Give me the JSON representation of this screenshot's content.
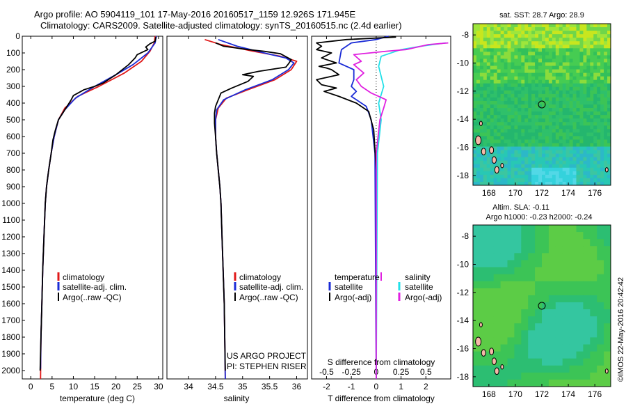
{
  "header": {
    "line1": "Argo profile: AO 5904119_101 17-May-2016 20160517_1159 12.926S 171.945E",
    "line2": "Climatology: CARS2009. Satellite-adjusted climatology: synTS_20160515.nc (2.4d earlier)"
  },
  "side_stamp": "©IMOS 22-May-2016 20:42:42",
  "colors": {
    "climatology": "#e01818",
    "satellite": "#1a2bd6",
    "argo": "#000000",
    "magenta": "#e020e0",
    "cyan": "#22e0e8"
  },
  "chart_data": [
    {
      "type": "line",
      "id": "temperature",
      "xlabel": "temperature (deg C)",
      "xlim": [
        -2,
        31
      ],
      "xticks": [
        0,
        5,
        10,
        15,
        20,
        25,
        30
      ],
      "ylim": [
        0,
        2050
      ],
      "yticks": [
        0,
        100,
        200,
        300,
        400,
        500,
        600,
        700,
        800,
        900,
        1000,
        1100,
        1200,
        1300,
        1400,
        1500,
        1600,
        1700,
        1800,
        1900,
        2000
      ],
      "legend": [
        "climatology",
        "satellite-adj. clim.",
        "Argo(..raw -QC)"
      ],
      "series": [
        {
          "name": "climatology",
          "color": "#e01818",
          "points": [
            [
              29.2,
              0
            ],
            [
              29,
              40
            ],
            [
              28,
              90
            ],
            [
              26,
              150
            ],
            [
              22,
              220
            ],
            [
              16,
              300
            ],
            [
              11,
              360
            ],
            [
              8,
              430
            ],
            [
              6.5,
              500
            ],
            [
              5.5,
              600
            ],
            [
              4.8,
              700
            ],
            [
              4.2,
              800
            ],
            [
              3.7,
              900
            ],
            [
              3.4,
              1000
            ],
            [
              3.1,
              1200
            ],
            [
              2.8,
              1400
            ],
            [
              2.6,
              1600
            ],
            [
              2.4,
              1800
            ],
            [
              2.3,
              2050
            ]
          ]
        },
        {
          "name": "satellite-adj. clim.",
          "color": "#1a2bd6",
          "points": [
            [
              29.5,
              0
            ],
            [
              29.2,
              40
            ],
            [
              27.5,
              100
            ],
            [
              24,
              170
            ],
            [
              20,
              230
            ],
            [
              15,
              300
            ],
            [
              10.5,
              370
            ],
            [
              8,
              440
            ],
            [
              6.5,
              500
            ],
            [
              5.5,
              600
            ],
            [
              4.8,
              700
            ],
            [
              4.2,
              800
            ],
            [
              3.7,
              900
            ],
            [
              3.4,
              1000
            ],
            [
              3.1,
              1200
            ],
            [
              2.8,
              1400
            ],
            [
              2.6,
              1600
            ],
            [
              2.4,
              1800
            ],
            [
              2.3,
              1990
            ]
          ]
        },
        {
          "name": "Argo(..raw -QC)",
          "color": "#000000",
          "points": [
            [
              29.4,
              5
            ],
            [
              29.2,
              30
            ],
            [
              28,
              45
            ],
            [
              27,
              65
            ],
            [
              27.5,
              80
            ],
            [
              25,
              110
            ],
            [
              24.5,
              130
            ],
            [
              23,
              170
            ],
            [
              20,
              230
            ],
            [
              17,
              280
            ],
            [
              15,
              300
            ],
            [
              12.5,
              320
            ],
            [
              10,
              355
            ],
            [
              9.5,
              380
            ],
            [
              8.5,
              420
            ],
            [
              7.5,
              460
            ],
            [
              6.5,
              500
            ],
            [
              5.8,
              560
            ],
            [
              5.2,
              620
            ],
            [
              4.8,
              700
            ],
            [
              4.2,
              800
            ],
            [
              3.7,
              900
            ],
            [
              3.4,
              1000
            ],
            [
              3.1,
              1200
            ],
            [
              2.8,
              1400
            ],
            [
              2.6,
              1600
            ],
            [
              2.4,
              1800
            ],
            [
              2.2,
              2000
            ]
          ]
        }
      ]
    },
    {
      "type": "line",
      "id": "salinity",
      "xlabel": "salinity",
      "xlim": [
        33.6,
        36.2
      ],
      "xticks": [
        34,
        34.5,
        35,
        35.5,
        36
      ],
      "ylim": [
        0,
        2050
      ],
      "legend": [
        "climatology",
        "satellite-adj. clim.",
        "Argo(..raw -QC)"
      ],
      "annotations": [
        "US ARGO PROJECT",
        "PI: STEPHEN RISER"
      ],
      "series": [
        {
          "name": "climatology",
          "color": "#e01818",
          "points": [
            [
              34.3,
              20
            ],
            [
              34.6,
              50
            ],
            [
              35.2,
              90
            ],
            [
              35.7,
              120
            ],
            [
              36,
              150
            ],
            [
              35.9,
              200
            ],
            [
              35.6,
              260
            ],
            [
              35.1,
              320
            ],
            [
              34.7,
              370
            ],
            [
              34.55,
              430
            ],
            [
              34.5,
              500
            ],
            [
              34.5,
              600
            ],
            [
              34.52,
              700
            ],
            [
              34.55,
              800
            ],
            [
              34.58,
              900
            ],
            [
              34.6,
              1000
            ],
            [
              34.62,
              1200
            ],
            [
              34.64,
              1400
            ],
            [
              34.66,
              1600
            ],
            [
              34.67,
              1800
            ],
            [
              34.68,
              2050
            ]
          ]
        },
        {
          "name": "satellite-adj. clim.",
          "color": "#1a2bd6",
          "points": [
            [
              34.55,
              20
            ],
            [
              34.9,
              60
            ],
            [
              35.4,
              100
            ],
            [
              35.8,
              130
            ],
            [
              35.95,
              160
            ],
            [
              35.85,
              200
            ],
            [
              35.55,
              260
            ],
            [
              35.05,
              320
            ],
            [
              34.65,
              380
            ],
            [
              34.52,
              440
            ],
            [
              34.5,
              500
            ],
            [
              34.5,
              600
            ],
            [
              34.52,
              700
            ],
            [
              34.55,
              800
            ],
            [
              34.58,
              900
            ],
            [
              34.6,
              1000
            ],
            [
              34.62,
              1200
            ],
            [
              34.64,
              1400
            ],
            [
              34.66,
              1600
            ],
            [
              34.67,
              1800
            ],
            [
              34.68,
              2050
            ]
          ]
        },
        {
          "name": "Argo(..raw -QC)",
          "color": "#000000",
          "points": [
            [
              34.5,
              40
            ],
            [
              34.65,
              60
            ],
            [
              35.1,
              80
            ],
            [
              35.4,
              90
            ],
            [
              35.7,
              105
            ],
            [
              35.9,
              140
            ],
            [
              35.85,
              165
            ],
            [
              35.8,
              185
            ],
            [
              35.5,
              200
            ],
            [
              35.3,
              210
            ],
            [
              35,
              230
            ],
            [
              35.2,
              240
            ],
            [
              35.1,
              270
            ],
            [
              34.8,
              310
            ],
            [
              34.6,
              340
            ],
            [
              34.55,
              380
            ],
            [
              34.5,
              420
            ],
            [
              34.48,
              460
            ],
            [
              34.48,
              520
            ],
            [
              34.5,
              600
            ],
            [
              34.52,
              700
            ],
            [
              34.55,
              800
            ],
            [
              34.58,
              900
            ],
            [
              34.6,
              1000
            ],
            [
              34.62,
              1200
            ],
            [
              34.64,
              1400
            ],
            [
              34.66,
              1600
            ],
            [
              34.67,
              1800
            ],
            [
              34.68,
              2000
            ]
          ]
        }
      ]
    },
    {
      "type": "line",
      "id": "difference",
      "xlabel": "T difference from climatology",
      "xlabel2": "S difference from climatology",
      "xlim": [
        -2.6,
        3.0
      ],
      "xticks": [
        -2,
        -1,
        0,
        1,
        2
      ],
      "xticks2": [
        "-0.5",
        "-0.25",
        "0",
        "0.25",
        "0.5"
      ],
      "ylim": [
        0,
        2050
      ],
      "legend": [
        "temperature",
        "salinity",
        "satellite",
        "satellite",
        "Argo(-adj)",
        "Argo(-adj)"
      ],
      "series": [
        {
          "name": "T satellite",
          "color": "#1a2bd6",
          "points": [
            [
              0.5,
              0
            ],
            [
              0,
              20
            ],
            [
              -1,
              40
            ],
            [
              -1.4,
              80
            ],
            [
              -1.5,
              160
            ],
            [
              -0.9,
              200
            ],
            [
              -0.9,
              260
            ],
            [
              -1,
              300
            ],
            [
              -0.8,
              330
            ],
            [
              -1,
              360
            ],
            [
              -0.4,
              420
            ],
            [
              -0.2,
              500
            ],
            [
              -0.05,
              700
            ],
            [
              0,
              2050
            ]
          ]
        },
        {
          "name": "T Argo(-adj)",
          "color": "#000000",
          "points": [
            [
              0.8,
              5
            ],
            [
              -1.2,
              20
            ],
            [
              -2.4,
              40
            ],
            [
              -2.2,
              60
            ],
            [
              -2.4,
              80
            ],
            [
              -1.8,
              100
            ],
            [
              -2.2,
              130
            ],
            [
              -1.6,
              160
            ],
            [
              -2.3,
              180
            ],
            [
              -2,
              190
            ],
            [
              -1.8,
              200
            ],
            [
              -1.5,
              230
            ],
            [
              -2.4,
              260
            ],
            [
              -2.2,
              290
            ],
            [
              -1.6,
              310
            ],
            [
              -2.1,
              330
            ],
            [
              -1.5,
              360
            ],
            [
              -0.8,
              400
            ],
            [
              -0.3,
              450
            ],
            [
              -0.1,
              560
            ],
            [
              0,
              800
            ],
            [
              0,
              2050
            ]
          ]
        },
        {
          "name": "S satellite",
          "color": "#22e0e8",
          "points": [
            [
              2.8,
              40
            ],
            [
              1.8,
              60
            ],
            [
              1,
              80
            ],
            [
              0.2,
              120
            ],
            [
              0.1,
              180
            ],
            [
              0.2,
              240
            ],
            [
              0.3,
              300
            ],
            [
              0.1,
              400
            ],
            [
              0.2,
              500
            ],
            [
              0.05,
              700
            ],
            [
              0,
              2050
            ]
          ]
        },
        {
          "name": "S Argo(-adj)",
          "color": "#e020e0",
          "points": [
            [
              2.9,
              40
            ],
            [
              2.1,
              50
            ],
            [
              1.2,
              80
            ],
            [
              0.4,
              90
            ],
            [
              -0.9,
              110
            ],
            [
              -0.6,
              150
            ],
            [
              -0.9,
              170
            ],
            [
              -0.5,
              220
            ],
            [
              -0.8,
              260
            ],
            [
              -0.6,
              300
            ],
            [
              -0.2,
              340
            ],
            [
              0.4,
              380
            ],
            [
              0.3,
              430
            ],
            [
              0.15,
              500
            ],
            [
              0,
              700
            ],
            [
              0,
              2050
            ]
          ]
        }
      ]
    },
    {
      "type": "heatmap",
      "id": "sst_map",
      "title": "sat. SST: 28.7 Argo: 28.9",
      "xticks": [
        168,
        170,
        172,
        174,
        176
      ],
      "yticks": [
        -8,
        -10,
        -12,
        -14,
        -16,
        -18
      ],
      "xlim": [
        166.8,
        177.2
      ],
      "ylim": [
        -18.7,
        -7.2
      ],
      "marker": [
        172,
        -12.95
      ]
    },
    {
      "type": "heatmap",
      "id": "sla_map",
      "title": "Altim. SLA: -0.11",
      "subtitle": "Argo h1000: -0.23 h2000: -0.24",
      "xticks": [
        168,
        170,
        172,
        174,
        176
      ],
      "yticks": [
        -8,
        -10,
        -12,
        -14,
        -16,
        -18
      ],
      "xlim": [
        166.8,
        177.2
      ],
      "ylim": [
        -18.7,
        -7.2
      ],
      "marker": [
        172,
        -12.95
      ]
    }
  ]
}
